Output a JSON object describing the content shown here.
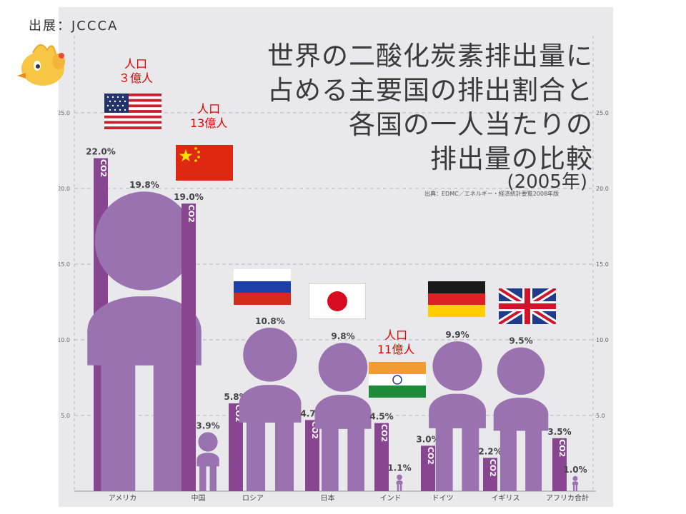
{
  "source_label": "出展：JCCCA",
  "title_lines": [
    "世界の二酸化炭素排出量に",
    "占める主要国の排出割合と",
    "各国の一人当たりの",
    "排出量の比較"
  ],
  "subtitle": "(2005年)",
  "credit": "出典：EDMC／エネルギー・経済統計要覧2008年版",
  "population_notes": [
    {
      "country": "アメリカ",
      "line1": "人口",
      "line2": "３億人"
    },
    {
      "country": "中国",
      "line1": "人口",
      "line2": "13億人"
    },
    {
      "country": "インド",
      "line1": "人口",
      "line2": "11億人"
    }
  ],
  "colors": {
    "share_bar": "#87468f",
    "person": "#9a72b0",
    "grid": "#b5b5b8",
    "panel": "#e9e9eb",
    "note": "#e00000"
  },
  "chart_data": {
    "type": "bar",
    "categories": [
      "アメリカ",
      "中国",
      "ロシア",
      "日本",
      "インド",
      "ドイツ",
      "イギリス",
      "アフリカ合計"
    ],
    "series": [
      {
        "values": [
          22.0,
          19.0,
          5.8,
          4.7,
          4.5,
          3.0,
          2.2,
          3.5
        ],
        "labels": [
          "22.0%",
          "19.0%",
          "5.8%",
          "4.7%",
          "4.5%",
          "3.0%",
          "2.2%",
          "3.5%"
        ]
      },
      {
        "values": [
          19.8,
          3.9,
          10.8,
          9.8,
          1.1,
          9.9,
          9.5,
          1.0
        ],
        "labels": [
          "19.8%",
          "3.9%",
          "10.8%",
          "9.8%",
          "1.1%",
          "9.9%",
          "9.5%",
          "1.0%"
        ]
      }
    ],
    "bar_label": "CO2",
    "yticks": [
      5.0,
      10.0,
      15.0,
      20.0,
      25.0
    ],
    "ytick_labels": [
      "5.0",
      "10.0",
      "15.0",
      "20.0",
      "25.0"
    ],
    "ylim": [
      0,
      28
    ],
    "grid": true,
    "flags": [
      "usa",
      "china",
      "russia",
      "japan",
      "india",
      "germany",
      "uk"
    ]
  }
}
